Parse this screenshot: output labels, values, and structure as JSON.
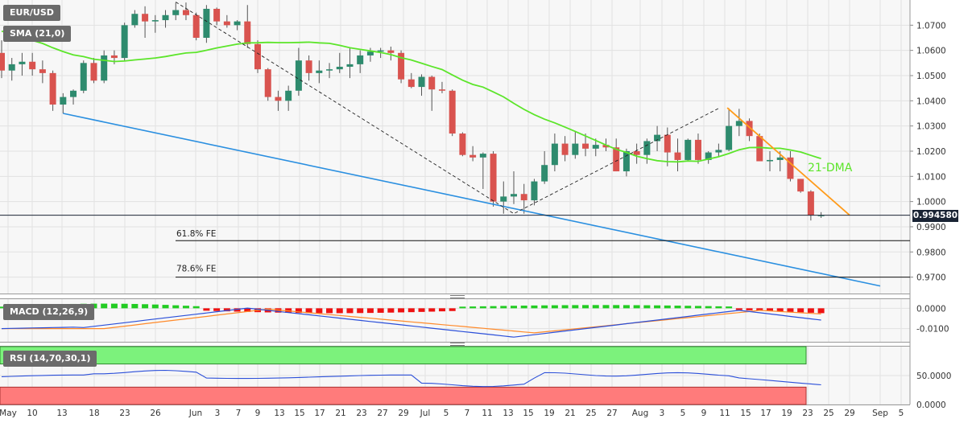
{
  "symbol": "EUR/USD",
  "indicators": {
    "sma": "SMA (21,0)",
    "macd": "MACD (12,26,9)",
    "rsi": "RSI (14,70,30,1)"
  },
  "annotations": {
    "dma": "21-DMA",
    "fe618": "61.8% FE",
    "fe786": "78.6% FE"
  },
  "last_price": "0.994580",
  "colors": {
    "up": "#2e8b6e",
    "down": "#d9534f",
    "sma": "#5ce52a",
    "support": "#2a8fe0",
    "resistance": "#ff9b1a",
    "macd_line": "#2b4fd9",
    "signal_line": "#ff8a2a",
    "rsi_line": "#2b4fd9",
    "overbought": "#7cf27c",
    "oversold": "#ff7b7b"
  },
  "chart_data": [
    {
      "type": "candlestick",
      "title": "EUR/USD",
      "y_ticks": [
        "1.0700",
        "1.0600",
        "1.0500",
        "1.0400",
        "1.0300",
        "1.0200",
        "1.0100",
        "1.0000",
        "0.9900",
        "0.9800",
        "0.9700"
      ],
      "ylim": [
        0.9635,
        1.08
      ],
      "x_ticks": [
        "May",
        "10",
        "13",
        "18",
        "23",
        "26",
        "Jun",
        "3",
        "7",
        "9",
        "13",
        "15",
        "17",
        "21",
        "23",
        "27",
        "29",
        "Jul",
        "5",
        "7",
        "11",
        "13",
        "15",
        "19",
        "21",
        "25",
        "27",
        "Aug",
        "3",
        "5",
        "9",
        "11",
        "15",
        "17",
        "19",
        "23",
        "25",
        "29",
        "Sep",
        "5"
      ],
      "candles": [
        {
          "o": 1.059,
          "h": 1.064,
          "l": 1.049,
          "c": 1.052
        },
        {
          "o": 1.052,
          "h": 1.057,
          "l": 1.048,
          "c": 1.0545
        },
        {
          "o": 1.0545,
          "h": 1.059,
          "l": 1.05,
          "c": 1.0555
        },
        {
          "o": 1.0555,
          "h": 1.059,
          "l": 1.05,
          "c": 1.0525
        },
        {
          "o": 1.0525,
          "h": 1.056,
          "l": 1.047,
          "c": 1.051
        },
        {
          "o": 1.051,
          "h": 1.052,
          "l": 1.036,
          "c": 1.0385
        },
        {
          "o": 1.0385,
          "h": 1.043,
          "l": 1.035,
          "c": 1.0415
        },
        {
          "o": 1.0415,
          "h": 1.0445,
          "l": 1.0385,
          "c": 1.044
        },
        {
          "o": 1.044,
          "h": 1.056,
          "l": 1.043,
          "c": 1.055
        },
        {
          "o": 1.055,
          "h": 1.057,
          "l": 1.047,
          "c": 1.048
        },
        {
          "o": 1.048,
          "h": 1.06,
          "l": 1.047,
          "c": 1.058
        },
        {
          "o": 1.058,
          "h": 1.06,
          "l": 1.0545,
          "c": 1.057
        },
        {
          "o": 1.057,
          "h": 1.071,
          "l": 1.056,
          "c": 1.07
        },
        {
          "o": 1.07,
          "h": 1.076,
          "l": 1.069,
          "c": 1.0745
        },
        {
          "o": 1.0745,
          "h": 1.0775,
          "l": 1.065,
          "c": 1.0715
        },
        {
          "o": 1.0715,
          "h": 1.074,
          "l": 1.067,
          "c": 1.072
        },
        {
          "o": 1.072,
          "h": 1.076,
          "l": 1.069,
          "c": 1.074
        },
        {
          "o": 1.074,
          "h": 1.079,
          "l": 1.072,
          "c": 1.076
        },
        {
          "o": 1.076,
          "h": 1.079,
          "l": 1.072,
          "c": 1.074
        },
        {
          "o": 1.074,
          "h": 1.075,
          "l": 1.064,
          "c": 1.065
        },
        {
          "o": 1.065,
          "h": 1.078,
          "l": 1.063,
          "c": 1.0765
        },
        {
          "o": 1.0765,
          "h": 1.077,
          "l": 1.07,
          "c": 1.0715
        },
        {
          "o": 1.0715,
          "h": 1.074,
          "l": 1.069,
          "c": 1.07
        },
        {
          "o": 1.07,
          "h": 1.072,
          "l": 1.068,
          "c": 1.0715
        },
        {
          "o": 1.0715,
          "h": 1.078,
          "l": 1.061,
          "c": 1.0625
        },
        {
          "o": 1.0625,
          "h": 1.064,
          "l": 1.051,
          "c": 1.0525
        },
        {
          "o": 1.0525,
          "h": 1.053,
          "l": 1.04,
          "c": 1.0415
        },
        {
          "o": 1.0415,
          "h": 1.044,
          "l": 1.036,
          "c": 1.04
        },
        {
          "o": 1.04,
          "h": 1.046,
          "l": 1.036,
          "c": 1.044
        },
        {
          "o": 1.044,
          "h": 1.061,
          "l": 1.042,
          "c": 1.056
        },
        {
          "o": 1.056,
          "h": 1.058,
          "l": 1.048,
          "c": 1.051
        },
        {
          "o": 1.051,
          "h": 1.056,
          "l": 1.047,
          "c": 1.052
        },
        {
          "o": 1.052,
          "h": 1.055,
          "l": 1.049,
          "c": 1.0525
        },
        {
          "o": 1.0525,
          "h": 1.059,
          "l": 1.051,
          "c": 1.0535
        },
        {
          "o": 1.0535,
          "h": 1.061,
          "l": 1.049,
          "c": 1.0545
        },
        {
          "o": 1.0545,
          "h": 1.06,
          "l": 1.051,
          "c": 1.058
        },
        {
          "o": 1.058,
          "h": 1.061,
          "l": 1.0555,
          "c": 1.0595
        },
        {
          "o": 1.0595,
          "h": 1.061,
          "l": 1.057,
          "c": 1.06
        },
        {
          "o": 1.06,
          "h": 1.0615,
          "l": 1.056,
          "c": 1.059
        },
        {
          "o": 1.059,
          "h": 1.06,
          "l": 1.047,
          "c": 1.0485
        },
        {
          "o": 1.0485,
          "h": 1.051,
          "l": 1.045,
          "c": 1.0455
        },
        {
          "o": 1.0455,
          "h": 1.0505,
          "l": 1.042,
          "c": 1.0495
        },
        {
          "o": 1.0495,
          "h": 1.05,
          "l": 1.036,
          "c": 1.0445
        },
        {
          "o": 1.0445,
          "h": 1.0475,
          "l": 1.043,
          "c": 1.044
        },
        {
          "o": 1.044,
          "h": 1.0445,
          "l": 1.026,
          "c": 1.027
        },
        {
          "o": 1.027,
          "h": 1.0275,
          "l": 1.018,
          "c": 1.0185
        },
        {
          "o": 1.0185,
          "h": 1.022,
          "l": 1.016,
          "c": 1.0175
        },
        {
          "o": 1.0175,
          "h": 1.0195,
          "l": 1.005,
          "c": 1.019
        },
        {
          "o": 1.019,
          "h": 1.02,
          "l": 0.998,
          "c": 1.0
        },
        {
          "o": 1.0,
          "h": 1.008,
          "l": 0.9952,
          "c": 1.002
        },
        {
          "o": 1.002,
          "h": 1.012,
          "l": 0.999,
          "c": 1.003
        },
        {
          "o": 1.003,
          "h": 1.007,
          "l": 0.9952,
          "c": 1.0005
        },
        {
          "o": 1.0005,
          "h": 1.009,
          "l": 0.9985,
          "c": 1.008
        },
        {
          "o": 1.008,
          "h": 1.02,
          "l": 1.007,
          "c": 1.0145
        },
        {
          "o": 1.0145,
          "h": 1.027,
          "l": 1.012,
          "c": 1.023
        },
        {
          "o": 1.023,
          "h": 1.026,
          "l": 1.016,
          "c": 1.0185
        },
        {
          "o": 1.0185,
          "h": 1.028,
          "l": 1.017,
          "c": 1.023
        },
        {
          "o": 1.023,
          "h": 1.027,
          "l": 1.018,
          "c": 1.021
        },
        {
          "o": 1.021,
          "h": 1.025,
          "l": 1.018,
          "c": 1.0225
        },
        {
          "o": 1.0225,
          "h": 1.025,
          "l": 1.02,
          "c": 1.0215
        },
        {
          "o": 1.0215,
          "h": 1.025,
          "l": 1.012,
          "c": 1.012
        },
        {
          "o": 1.012,
          "h": 1.021,
          "l": 1.01,
          "c": 1.02
        },
        {
          "o": 1.02,
          "h": 1.023,
          "l": 1.015,
          "c": 1.0185
        },
        {
          "o": 1.0185,
          "h": 1.025,
          "l": 1.015,
          "c": 1.024
        },
        {
          "o": 1.024,
          "h": 1.03,
          "l": 1.02,
          "c": 1.0265
        },
        {
          "o": 1.0265,
          "h": 1.0294,
          "l": 1.014,
          "c": 1.0195
        },
        {
          "o": 1.0195,
          "h": 1.025,
          "l": 1.012,
          "c": 1.0165
        },
        {
          "o": 1.0165,
          "h": 1.025,
          "l": 1.016,
          "c": 1.0245
        },
        {
          "o": 1.0245,
          "h": 1.027,
          "l": 1.015,
          "c": 1.0165
        },
        {
          "o": 1.0165,
          "h": 1.02,
          "l": 1.015,
          "c": 1.0195
        },
        {
          "o": 1.0195,
          "h": 1.023,
          "l": 1.018,
          "c": 1.0205
        },
        {
          "o": 1.0205,
          "h": 1.037,
          "l": 1.02,
          "c": 1.03
        },
        {
          "o": 1.03,
          "h": 1.0368,
          "l": 1.026,
          "c": 1.032
        },
        {
          "o": 1.032,
          "h": 1.033,
          "l": 1.024,
          "c": 1.026
        },
        {
          "o": 1.026,
          "h": 1.027,
          "l": 1.016,
          "c": 1.016
        },
        {
          "o": 1.016,
          "h": 1.02,
          "l": 1.012,
          "c": 1.0165
        },
        {
          "o": 1.0165,
          "h": 1.02,
          "l": 1.012,
          "c": 1.0175
        },
        {
          "o": 1.0175,
          "h": 1.02,
          "l": 1.008,
          "c": 1.009
        },
        {
          "o": 1.009,
          "h": 1.009,
          "l": 1.0035,
          "c": 1.004
        },
        {
          "o": 1.004,
          "h": 1.0045,
          "l": 0.9925,
          "c": 0.9945
        },
        {
          "o": 0.9945,
          "h": 0.9958,
          "l": 0.9935,
          "c": 0.99458
        }
      ]
    },
    {
      "type": "bar",
      "title": "MACD (12,26,9)",
      "y_ticks": [
        "0.0000",
        "-0.0100"
      ],
      "ylim": [
        -0.0165,
        0.0045
      ]
    },
    {
      "type": "line",
      "title": "RSI (14,70,30,1)",
      "y_ticks": [
        "50.0000",
        "0.0000"
      ],
      "ylim": [
        0,
        100
      ]
    }
  ]
}
